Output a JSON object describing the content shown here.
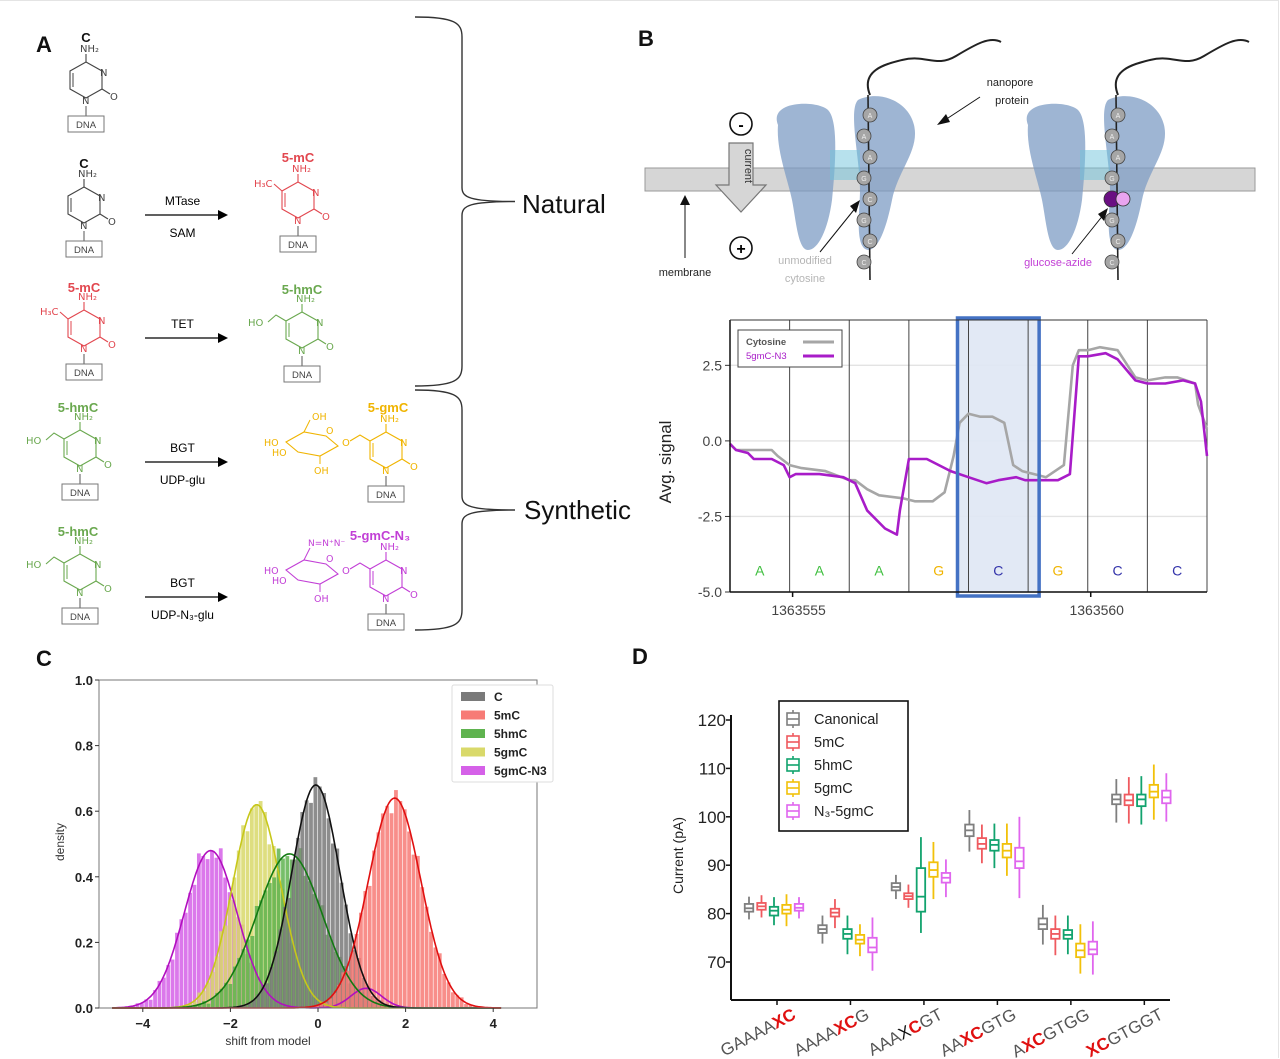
{
  "panels": {
    "A": {
      "letter": "A",
      "groups": {
        "natural": "Natural",
        "synthetic": "Synthetic"
      },
      "dna_label": "DNA",
      "atoms": {
        "nh2": "NH₂",
        "n": "N",
        "o": "O",
        "h3c": "H₃C",
        "ho": "HO",
        "oh": "OH",
        "azide": "N=N⁺N⁻"
      },
      "rows": [
        {
          "substrate": "C",
          "substrate_color": "#111111"
        },
        {
          "substrate": "C",
          "substrate_color": "#111111",
          "enzyme": "MTase",
          "cofactor": "SAM",
          "product": "5-mC",
          "product_color": "#e2474f"
        },
        {
          "substrate": "5-mC",
          "substrate_color": "#e2474f",
          "enzyme": "TET",
          "cofactor": "",
          "product": "5-hmC",
          "product_color": "#6aa84f"
        },
        {
          "substrate": "5-hmC",
          "substrate_color": "#6aa84f",
          "enzyme": "BGT",
          "cofactor": "UDP-glu",
          "product": "5-gmC",
          "product_color": "#f0b400"
        },
        {
          "substrate": "5-hmC",
          "substrate_color": "#6aa84f",
          "enzyme": "BGT",
          "cofactor": "UDP-N₃-glu",
          "product": "5-gmC-N₃",
          "product_color": "#c23fd6"
        }
      ]
    },
    "B": {
      "letter": "B",
      "labels": {
        "minus": "-",
        "plus": "+",
        "current": "current",
        "membrane": "membrane",
        "nanopore_line1": "nanopore",
        "nanopore_line2": "protein",
        "unmodified_line1": "unmodified",
        "unmodified_line2": "cytosine",
        "glucose_azide": "glucose-azide"
      },
      "strand_left": [
        "A",
        "A",
        "A",
        "G",
        "C",
        "G",
        "C",
        "C"
      ],
      "strand_right": [
        "A",
        "A",
        "A",
        "G",
        "C",
        "G",
        "C",
        "C"
      ],
      "colors": {
        "membrane": "#d6d6d6",
        "protein": "#7d9cc4",
        "glucose_dark": "#6a0f82",
        "glucose_light": "#e9a4ef",
        "unmodified_text": "#b5b5b5",
        "glucose_text": "#c23fd6"
      }
    },
    "C": {
      "letter": "C"
    },
    "D": {
      "letter": "D"
    }
  },
  "chart_data": [
    {
      "id": "B-signal",
      "type": "line",
      "title": "",
      "xlabel": "",
      "ylabel": "Avg. signal",
      "xlim": [
        1363553.95,
        1363561.95
      ],
      "ylim": [
        -5.0,
        4.0
      ],
      "yticks": [
        2.5,
        0.0,
        -2.5,
        -5.0
      ],
      "ytick_labels": [
        "2.5",
        "0.0",
        "-2.5",
        "-5.0"
      ],
      "xticks": [
        1363555,
        1363560
      ],
      "xtick_labels": [
        "1363555",
        "1363560"
      ],
      "grid": true,
      "legend": {
        "position": "top-left"
      },
      "bases": [
        {
          "label": "A",
          "color": "#3fbf3f"
        },
        {
          "label": "A",
          "color": "#3fbf3f"
        },
        {
          "label": "A",
          "color": "#3fbf3f"
        },
        {
          "label": "G",
          "color": "#f0b400"
        },
        {
          "label": "C",
          "color": "#3333aa"
        },
        {
          "label": "G",
          "color": "#f0b400"
        },
        {
          "label": "C",
          "color": "#3333aa"
        },
        {
          "label": "C",
          "color": "#3333aa"
        }
      ],
      "highlight_base_index": 4,
      "series": [
        {
          "name": "Cytosine",
          "color": "#a6a6a6",
          "x": [
            0.0,
            0.1,
            0.4,
            0.7,
            0.8,
            1.0,
            1.2,
            1.6,
            2.0,
            2.1,
            2.3,
            2.5,
            2.9,
            3.1,
            3.4,
            3.6,
            3.75,
            3.85,
            4.0,
            4.2,
            4.4,
            4.6,
            4.75,
            4.9,
            5.1,
            5.3,
            5.6,
            5.75,
            5.85,
            6.0,
            6.2,
            6.5,
            6.8,
            7.0,
            7.3,
            7.5,
            7.8,
            7.85,
            8.0
          ],
          "y": [
            -0.1,
            -0.3,
            -0.3,
            -0.3,
            -0.5,
            -0.8,
            -0.9,
            -1.0,
            -1.3,
            -1.3,
            -1.6,
            -1.8,
            -1.9,
            -2.0,
            -2.0,
            -1.7,
            -0.5,
            0.6,
            0.9,
            0.8,
            0.8,
            0.6,
            -0.8,
            -1.0,
            -1.1,
            -1.2,
            -0.8,
            2.5,
            3.0,
            3.0,
            3.1,
            3.0,
            2.1,
            2.0,
            2.1,
            2.1,
            1.9,
            1.2,
            0.4
          ]
        },
        {
          "name": "5gmC-N3",
          "color": "#a81cc8",
          "x": [
            0.0,
            0.1,
            0.3,
            0.4,
            0.7,
            0.9,
            1.0,
            1.1,
            1.5,
            1.9,
            2.1,
            2.3,
            2.6,
            2.8,
            2.85,
            3.0,
            3.3,
            3.4,
            3.7,
            4.0,
            4.3,
            4.5,
            4.8,
            4.95,
            5.2,
            5.5,
            5.6,
            5.7,
            5.85,
            6.0,
            6.3,
            6.5,
            6.8,
            7.0,
            7.3,
            7.6,
            7.8,
            7.9,
            8.0
          ],
          "y": [
            -0.1,
            -0.3,
            -0.4,
            -0.6,
            -0.6,
            -0.8,
            -1.2,
            -1.1,
            -1.1,
            -1.2,
            -1.4,
            -2.3,
            -2.9,
            -3.1,
            -2.3,
            -0.6,
            -0.6,
            -0.7,
            -1.0,
            -1.2,
            -1.4,
            -1.3,
            -1.2,
            -1.3,
            -1.3,
            -1.3,
            -1.2,
            -1.1,
            2.8,
            2.8,
            2.9,
            2.7,
            2.0,
            1.9,
            1.9,
            2.0,
            1.9,
            1.3,
            -0.5
          ]
        }
      ]
    },
    {
      "id": "C-density",
      "type": "area",
      "title": "",
      "xlabel": "shift from model",
      "ylabel": "density",
      "xlim": [
        -5.0,
        5.0
      ],
      "ylim": [
        0.0,
        1.0
      ],
      "xticks": [
        -4,
        -2,
        0,
        2,
        4
      ],
      "xtick_labels": [
        "−4",
        "−2",
        "0",
        "2",
        "4"
      ],
      "yticks": [
        0.0,
        0.2,
        0.4,
        0.6,
        0.8,
        1.0
      ],
      "ytick_labels": [
        "0.0",
        "0.2",
        "0.4",
        "0.6",
        "0.8",
        "1.0"
      ],
      "grid": false,
      "legend": {
        "position": "top-right"
      },
      "series": [
        {
          "name": "5gmC-N3",
          "fill": "#d561e8",
          "line": "#b20fbf",
          "mean": -2.45,
          "sd": 0.6,
          "peak": 0.48,
          "hist_max": 0.53,
          "secondary": {
            "mean": 1.1,
            "sd": 0.35,
            "peak": 0.06
          }
        },
        {
          "name": "5gmC",
          "fill": "#d9d96a",
          "line": "#c7c71a",
          "mean": -1.4,
          "sd": 0.55,
          "peak": 0.62,
          "hist_max": 0.67
        },
        {
          "name": "5hmC",
          "fill": "#5fb34f",
          "line": "#127a12",
          "mean": -0.65,
          "sd": 0.75,
          "peak": 0.47,
          "hist_max": 0.52
        },
        {
          "name": "C",
          "fill": "#7a7a7a",
          "line": "#111111",
          "mean": -0.05,
          "sd": 0.55,
          "peak": 0.68,
          "hist_max": 0.77
        },
        {
          "name": "5mC",
          "fill": "#f77b76",
          "line": "#e01010",
          "mean": 1.75,
          "sd": 0.6,
          "peak": 0.64,
          "hist_max": 0.71
        }
      ],
      "legend_order": [
        "C",
        "5mC",
        "5hmC",
        "5gmC",
        "5gmC-N3"
      ]
    },
    {
      "id": "D-boxplot",
      "type": "bar",
      "subtype": "boxplot",
      "title": "",
      "xlabel": "",
      "ylabel": "Current (pA)",
      "ylim": [
        62,
        120
      ],
      "yticks": [
        70,
        80,
        90,
        100,
        110,
        120
      ],
      "ytick_labels": [
        "70",
        "80",
        "90",
        "100",
        "110",
        "120"
      ],
      "legend": {
        "position": "top-left"
      },
      "categories": [
        {
          "parts": [
            {
              "t": "GAAAA",
              "c": "#555555"
            },
            {
              "t": "XC",
              "c": "#e01010",
              "b": true
            }
          ]
        },
        {
          "parts": [
            {
              "t": "AAAA",
              "c": "#555555"
            },
            {
              "t": "XC",
              "c": "#e01010",
              "b": true
            },
            {
              "t": "G",
              "c": "#555555"
            }
          ]
        },
        {
          "parts": [
            {
              "t": "AAA",
              "c": "#555555"
            },
            {
              "t": "X",
              "c": "#111111"
            },
            {
              "t": "C",
              "c": "#e01010",
              "b": true
            },
            {
              "t": "GT",
              "c": "#555555"
            }
          ]
        },
        {
          "parts": [
            {
              "t": "AA",
              "c": "#555555"
            },
            {
              "t": "XC",
              "c": "#e01010",
              "b": true
            },
            {
              "t": "GTG",
              "c": "#555555"
            }
          ]
        },
        {
          "parts": [
            {
              "t": "A",
              "c": "#555555"
            },
            {
              "t": "XC",
              "c": "#e01010",
              "b": true
            },
            {
              "t": "GTGG",
              "c": "#555555"
            }
          ]
        },
        {
          "parts": [
            {
              "t": "XC",
              "c": "#e01010",
              "b": true
            },
            {
              "t": "GTGGT",
              "c": "#555555"
            }
          ]
        }
      ],
      "series": [
        {
          "name": "Canonical",
          "color": "#7f7f7f",
          "boxes": [
            {
              "lo": 78.8,
              "q1": 80.4,
              "med": 81.1,
              "q3": 82.0,
              "hi": 83.5
            },
            {
              "lo": 73.8,
              "q1": 76.0,
              "med": 76.8,
              "q3": 77.6,
              "hi": 79.6
            },
            {
              "lo": 83.0,
              "q1": 84.8,
              "med": 85.5,
              "q3": 86.3,
              "hi": 88.0
            },
            {
              "lo": 92.8,
              "q1": 96.0,
              "med": 97.2,
              "q3": 98.4,
              "hi": 101.4
            },
            {
              "lo": 73.6,
              "q1": 76.8,
              "med": 77.8,
              "q3": 79.0,
              "hi": 81.8
            },
            {
              "lo": 98.8,
              "q1": 102.6,
              "med": 103.6,
              "q3": 104.6,
              "hi": 107.8
            }
          ]
        },
        {
          "name": "5mC",
          "label_html": "5mC",
          "color": "#ef5a5f",
          "boxes": [
            {
              "lo": 79.2,
              "q1": 80.8,
              "med": 81.5,
              "q3": 82.2,
              "hi": 83.8
            },
            {
              "lo": 77.0,
              "q1": 79.4,
              "med": 80.2,
              "q3": 81.0,
              "hi": 83.0
            },
            {
              "lo": 81.2,
              "q1": 83.0,
              "med": 83.6,
              "q3": 84.2,
              "hi": 86.0
            },
            {
              "lo": 90.4,
              "q1": 93.4,
              "med": 94.4,
              "q3": 95.6,
              "hi": 98.4
            },
            {
              "lo": 71.4,
              "q1": 74.8,
              "med": 75.8,
              "q3": 76.8,
              "hi": 79.6
            },
            {
              "lo": 98.6,
              "q1": 102.4,
              "med": 103.4,
              "q3": 104.6,
              "hi": 108.2
            }
          ]
        },
        {
          "name": "5hmC",
          "color": "#12a36e",
          "boxes": [
            {
              "lo": 77.6,
              "q1": 79.6,
              "med": 80.6,
              "q3": 81.4,
              "hi": 83.4
            },
            {
              "lo": 71.6,
              "q1": 74.8,
              "med": 75.8,
              "q3": 76.8,
              "hi": 79.6
            },
            {
              "lo": 76.0,
              "q1": 80.4,
              "med": 83.5,
              "q3": 89.4,
              "hi": 95.8
            },
            {
              "lo": 89.4,
              "q1": 93.0,
              "med": 94.2,
              "q3": 95.2,
              "hi": 98.6
            },
            {
              "lo": 71.6,
              "q1": 74.8,
              "med": 75.6,
              "q3": 76.6,
              "hi": 79.6
            },
            {
              "lo": 98.4,
              "q1": 102.2,
              "med": 103.6,
              "q3": 104.6,
              "hi": 108.4
            }
          ]
        },
        {
          "name": "5gmC",
          "color": "#f2c10a",
          "boxes": [
            {
              "lo": 77.4,
              "q1": 80.0,
              "med": 80.8,
              "q3": 81.8,
              "hi": 84.0
            },
            {
              "lo": 71.2,
              "q1": 73.8,
              "med": 74.6,
              "q3": 75.6,
              "hi": 77.8
            },
            {
              "lo": 83.0,
              "q1": 87.6,
              "med": 89.0,
              "q3": 90.6,
              "hi": 94.8
            },
            {
              "lo": 87.8,
              "q1": 91.6,
              "med": 93.0,
              "q3": 94.4,
              "hi": 98.6
            },
            {
              "lo": 67.6,
              "q1": 71.0,
              "med": 72.4,
              "q3": 73.8,
              "hi": 77.8
            },
            {
              "lo": 99.4,
              "q1": 104.0,
              "med": 105.2,
              "q3": 106.6,
              "hi": 110.8
            }
          ]
        },
        {
          "name": "N3-5gmC",
          "color": "#e066ee",
          "boxes": [
            {
              "lo": 79.0,
              "q1": 80.6,
              "med": 81.2,
              "q3": 82.0,
              "hi": 83.4
            },
            {
              "lo": 68.2,
              "q1": 72.0,
              "med": 73.0,
              "q3": 75.0,
              "hi": 79.2
            },
            {
              "lo": 83.4,
              "q1": 86.4,
              "med": 87.4,
              "q3": 88.4,
              "hi": 91.2
            },
            {
              "lo": 83.2,
              "q1": 89.4,
              "med": 90.8,
              "q3": 93.6,
              "hi": 100.0
            },
            {
              "lo": 67.4,
              "q1": 71.6,
              "med": 72.6,
              "q3": 74.2,
              "hi": 78.4
            },
            {
              "lo": 99.0,
              "q1": 102.8,
              "med": 104.0,
              "q3": 105.4,
              "hi": 109.0
            }
          ]
        }
      ],
      "legend_labels": [
        "Canonical",
        "5mC",
        "5hmC",
        "5gmC",
        "N₃-5gmC"
      ]
    }
  ]
}
